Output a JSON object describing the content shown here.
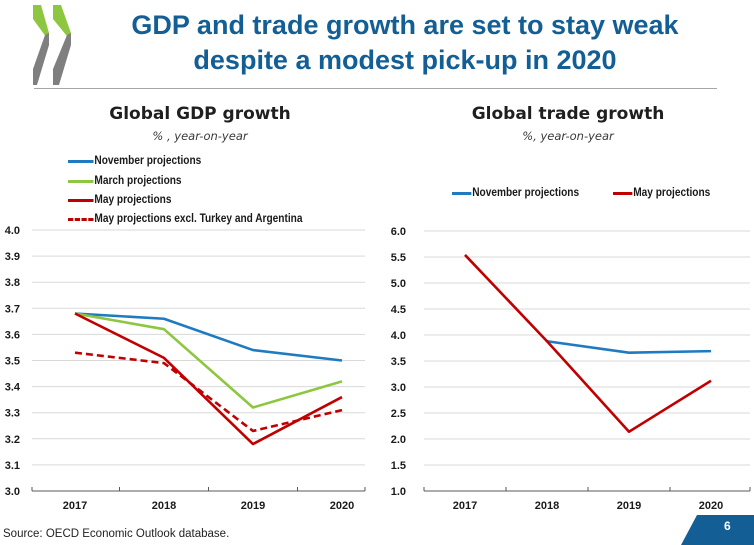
{
  "slide": {
    "title_line1": "GDP and trade growth are set to stay weak",
    "title_line2": "despite a modest pick-up in 2020",
    "source": "Source: OECD Economic Outlook database.",
    "page_number": "6",
    "colors": {
      "title": "#135f95",
      "logo_green": "#8dc63f",
      "logo_gray": "#7f7f7f",
      "page_tab": "#135f95"
    }
  },
  "chart_data": [
    {
      "type": "line",
      "title": "Global GDP growth",
      "subtitle": "% , year-on-year",
      "xlabel": "",
      "ylabel": "",
      "categories": [
        "2017",
        "2018",
        "2019",
        "2020"
      ],
      "ylim": [
        3.0,
        4.0
      ],
      "yticks": [
        "3.0",
        "3.1",
        "3.2",
        "3.3",
        "3.4",
        "3.5",
        "3.6",
        "3.7",
        "3.8",
        "3.9",
        "4.0"
      ],
      "grid": true,
      "legend_position": "top-left",
      "series": [
        {
          "name": "November projections",
          "color": "#1f7bc1",
          "dash": false,
          "values": [
            3.68,
            3.66,
            3.54,
            3.5
          ]
        },
        {
          "name": "March projections",
          "color": "#8dc63f",
          "dash": false,
          "values": [
            3.68,
            3.62,
            3.32,
            3.42
          ]
        },
        {
          "name": "May projections",
          "color": "#c00000",
          "dash": false,
          "values": [
            3.68,
            3.51,
            3.18,
            3.36
          ]
        },
        {
          "name": "May projections excl. Turkey and Argentina",
          "color": "#c00000",
          "dash": true,
          "values": [
            3.53,
            3.49,
            3.23,
            3.31
          ]
        }
      ]
    },
    {
      "type": "line",
      "title": "Global trade growth",
      "subtitle": "%, year-on-year",
      "xlabel": "",
      "ylabel": "",
      "categories": [
        "2017",
        "2018",
        "2019",
        "2020"
      ],
      "ylim": [
        1.0,
        6.0
      ],
      "yticks": [
        "1.0",
        "1.5",
        "2.0",
        "2.5",
        "3.0",
        "3.5",
        "4.0",
        "4.5",
        "5.0",
        "5.5",
        "6.0"
      ],
      "grid": true,
      "legend_position": "top",
      "series": [
        {
          "name": "November projections",
          "color": "#1f7bc1",
          "dash": false,
          "values": [
            null,
            3.88,
            3.66,
            3.69
          ]
        },
        {
          "name": "May projections",
          "color": "#c00000",
          "dash": false,
          "values": [
            5.54,
            3.88,
            2.14,
            3.12
          ]
        }
      ]
    }
  ]
}
